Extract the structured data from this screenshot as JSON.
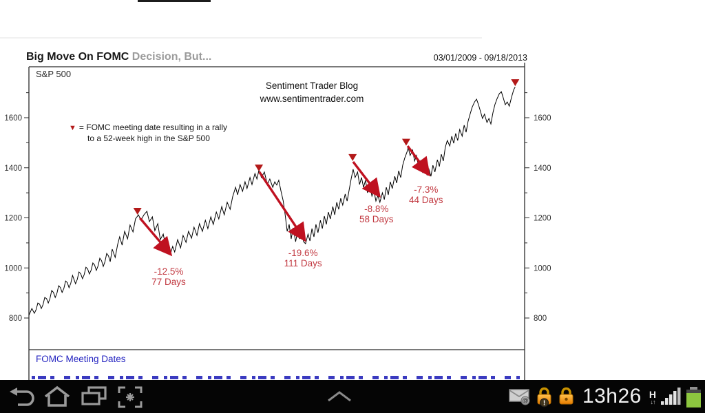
{
  "chart": {
    "title_bold": "Big Move On FOMC",
    "title_gray": " Decision, But...",
    "date_range": "03/01/2009 - 09/18/2013",
    "series_label": "S&P 500",
    "watermark_line1": "Sentiment  Trader Blog",
    "watermark_line2": "www.sentimentrader.com",
    "legend_marker": "▼",
    "legend_line1": "= FOMC  meeting date resulting in a rally",
    "legend_line2": "to a 52-week high in the S&P 500",
    "panel_label": "FOMC Meeting Dates",
    "colors": {
      "line": "#000000",
      "arrow_red": "#bf1120",
      "marker_red": "#b31919",
      "annotation_red": "#c23a42",
      "link_blue": "#2323c0",
      "axis_text": "#2d2d2d"
    }
  },
  "chart_data": {
    "type": "line",
    "title": "Big Move On FOMC Decision, But...",
    "series_name": "S&P 500",
    "x_range": [
      "03/01/2009",
      "09/18/2013"
    ],
    "ylim": [
      674,
      1803
    ],
    "yticks_major": [
      800,
      1000,
      1200,
      1400,
      1600
    ],
    "yticks_minor": [
      900,
      1100,
      1300,
      1500,
      1700
    ],
    "grid": false,
    "legend_position": "upper-left",
    "points": [
      [
        0.0,
        811
      ],
      [
        0.006,
        838
      ],
      [
        0.011,
        819
      ],
      [
        0.018,
        860
      ],
      [
        0.025,
        838
      ],
      [
        0.032,
        882
      ],
      [
        0.039,
        860
      ],
      [
        0.046,
        910
      ],
      [
        0.053,
        882
      ],
      [
        0.06,
        929
      ],
      [
        0.067,
        902
      ],
      [
        0.074,
        948
      ],
      [
        0.081,
        921
      ],
      [
        0.088,
        970
      ],
      [
        0.094,
        937
      ],
      [
        0.101,
        984
      ],
      [
        0.108,
        957
      ],
      [
        0.115,
        1003
      ],
      [
        0.122,
        976
      ],
      [
        0.129,
        1020
      ],
      [
        0.136,
        990
      ],
      [
        0.143,
        1039
      ],
      [
        0.15,
        1006
      ],
      [
        0.157,
        1058
      ],
      [
        0.164,
        1025
      ],
      [
        0.168,
        1075
      ],
      [
        0.174,
        1042
      ],
      [
        0.179,
        1094
      ],
      [
        0.183,
        1124
      ],
      [
        0.188,
        1091
      ],
      [
        0.193,
        1146
      ],
      [
        0.199,
        1116
      ],
      [
        0.204,
        1171
      ],
      [
        0.21,
        1144
      ],
      [
        0.215,
        1196
      ],
      [
        0.221,
        1212
      ],
      [
        0.226,
        1190
      ],
      [
        0.232,
        1212
      ],
      [
        0.238,
        1226
      ],
      [
        0.243,
        1185
      ],
      [
        0.249,
        1204
      ],
      [
        0.254,
        1149
      ],
      [
        0.26,
        1177
      ],
      [
        0.265,
        1113
      ],
      [
        0.271,
        1135
      ],
      [
        0.276,
        1086
      ],
      [
        0.281,
        1102
      ],
      [
        0.285,
        1053
      ],
      [
        0.29,
        1086
      ],
      [
        0.294,
        1064
      ],
      [
        0.3,
        1113
      ],
      [
        0.306,
        1080
      ],
      [
        0.311,
        1130
      ],
      [
        0.317,
        1102
      ],
      [
        0.322,
        1146
      ],
      [
        0.328,
        1119
      ],
      [
        0.333,
        1163
      ],
      [
        0.339,
        1130
      ],
      [
        0.344,
        1177
      ],
      [
        0.35,
        1146
      ],
      [
        0.356,
        1190
      ],
      [
        0.361,
        1157
      ],
      [
        0.367,
        1204
      ],
      [
        0.372,
        1174
      ],
      [
        0.378,
        1223
      ],
      [
        0.383,
        1196
      ],
      [
        0.389,
        1245
      ],
      [
        0.394,
        1212
      ],
      [
        0.4,
        1262
      ],
      [
        0.406,
        1234
      ],
      [
        0.411,
        1284
      ],
      [
        0.417,
        1322
      ],
      [
        0.421,
        1292
      ],
      [
        0.426,
        1333
      ],
      [
        0.431,
        1306
      ],
      [
        0.436,
        1344
      ],
      [
        0.44,
        1317
      ],
      [
        0.446,
        1361
      ],
      [
        0.45,
        1333
      ],
      [
        0.456,
        1377
      ],
      [
        0.46,
        1355
      ],
      [
        0.464,
        1391
      ],
      [
        0.469,
        1361
      ],
      [
        0.475,
        1383
      ],
      [
        0.481,
        1333
      ],
      [
        0.486,
        1355
      ],
      [
        0.492,
        1322
      ],
      [
        0.496,
        1344
      ],
      [
        0.5,
        1331
      ],
      [
        0.504,
        1350
      ],
      [
        0.508,
        1311
      ],
      [
        0.513,
        1267
      ],
      [
        0.517,
        1212
      ],
      [
        0.521,
        1146
      ],
      [
        0.525,
        1174
      ],
      [
        0.529,
        1116
      ],
      [
        0.533,
        1160
      ],
      [
        0.538,
        1105
      ],
      [
        0.542,
        1146
      ],
      [
        0.546,
        1116
      ],
      [
        0.55,
        1160
      ],
      [
        0.554,
        1105
      ],
      [
        0.558,
        1097
      ],
      [
        0.563,
        1135
      ],
      [
        0.567,
        1108
      ],
      [
        0.571,
        1157
      ],
      [
        0.575,
        1124
      ],
      [
        0.579,
        1174
      ],
      [
        0.583,
        1141
      ],
      [
        0.588,
        1190
      ],
      [
        0.592,
        1157
      ],
      [
        0.596,
        1207
      ],
      [
        0.6,
        1174
      ],
      [
        0.604,
        1223
      ],
      [
        0.608,
        1196
      ],
      [
        0.613,
        1245
      ],
      [
        0.617,
        1212
      ],
      [
        0.621,
        1262
      ],
      [
        0.625,
        1234
      ],
      [
        0.629,
        1278
      ],
      [
        0.633,
        1251
      ],
      [
        0.638,
        1295
      ],
      [
        0.642,
        1267
      ],
      [
        0.646,
        1311
      ],
      [
        0.65,
        1355
      ],
      [
        0.654,
        1394
      ],
      [
        0.658,
        1361
      ],
      [
        0.663,
        1383
      ],
      [
        0.667,
        1333
      ],
      [
        0.671,
        1361
      ],
      [
        0.675,
        1322
      ],
      [
        0.679,
        1350
      ],
      [
        0.683,
        1300
      ],
      [
        0.688,
        1328
      ],
      [
        0.692,
        1287
      ],
      [
        0.696,
        1309
      ],
      [
        0.7,
        1267
      ],
      [
        0.704,
        1289
      ],
      [
        0.708,
        1262
      ],
      [
        0.713,
        1300
      ],
      [
        0.717,
        1273
      ],
      [
        0.721,
        1322
      ],
      [
        0.725,
        1292
      ],
      [
        0.729,
        1344
      ],
      [
        0.733,
        1317
      ],
      [
        0.738,
        1366
      ],
      [
        0.742,
        1339
      ],
      [
        0.746,
        1388
      ],
      [
        0.75,
        1361
      ],
      [
        0.754,
        1410
      ],
      [
        0.758,
        1438
      ],
      [
        0.763,
        1465
      ],
      [
        0.765,
        1482
      ],
      [
        0.769,
        1449
      ],
      [
        0.774,
        1471
      ],
      [
        0.778,
        1427
      ],
      [
        0.782,
        1449
      ],
      [
        0.786,
        1405
      ],
      [
        0.79,
        1427
      ],
      [
        0.794,
        1383
      ],
      [
        0.799,
        1405
      ],
      [
        0.803,
        1372
      ],
      [
        0.807,
        1394
      ],
      [
        0.811,
        1366
      ],
      [
        0.815,
        1410
      ],
      [
        0.819,
        1383
      ],
      [
        0.824,
        1432
      ],
      [
        0.828,
        1405
      ],
      [
        0.832,
        1454
      ],
      [
        0.836,
        1427
      ],
      [
        0.84,
        1482
      ],
      [
        0.844,
        1509
      ],
      [
        0.849,
        1487
      ],
      [
        0.853,
        1526
      ],
      [
        0.857,
        1498
      ],
      [
        0.861,
        1537
      ],
      [
        0.865,
        1509
      ],
      [
        0.869,
        1553
      ],
      [
        0.874,
        1526
      ],
      [
        0.878,
        1570
      ],
      [
        0.882,
        1542
      ],
      [
        0.886,
        1586
      ],
      [
        0.89,
        1614
      ],
      [
        0.894,
        1641
      ],
      [
        0.899,
        1663
      ],
      [
        0.903,
        1674
      ],
      [
        0.907,
        1652
      ],
      [
        0.911,
        1625
      ],
      [
        0.915,
        1597
      ],
      [
        0.919,
        1614
      ],
      [
        0.924,
        1581
      ],
      [
        0.928,
        1597
      ],
      [
        0.932,
        1575
      ],
      [
        0.936,
        1619
      ],
      [
        0.94,
        1652
      ],
      [
        0.944,
        1674
      ],
      [
        0.949,
        1696
      ],
      [
        0.953,
        1704
      ],
      [
        0.957,
        1679
      ],
      [
        0.961,
        1652
      ],
      [
        0.965,
        1663
      ],
      [
        0.969,
        1646
      ],
      [
        0.974,
        1685
      ],
      [
        0.978,
        1712
      ],
      [
        0.981,
        1723
      ]
    ],
    "fomc_markers": [
      [
        0.219,
        1226
      ],
      [
        0.464,
        1399
      ],
      [
        0.653,
        1441
      ],
      [
        0.761,
        1502
      ],
      [
        0.981,
        1740
      ]
    ],
    "declines": [
      {
        "pct": "-12.5%",
        "days": "77 Days",
        "from": [
          0.224,
          1199
        ],
        "to": [
          0.283,
          1061
        ],
        "label": [
          0.282,
          973
        ]
      },
      {
        "pct": "-19.6%",
        "days": "111 Days",
        "from": [
          0.465,
          1383
        ],
        "to": [
          0.554,
          1119
        ],
        "label": [
          0.553,
          1047
        ]
      },
      {
        "pct": "-8.8%",
        "days": "58 Days",
        "from": [
          0.654,
          1424
        ],
        "to": [
          0.704,
          1295
        ],
        "label": [
          0.701,
          1223
        ]
      },
      {
        "pct": "-7.3%",
        "days": "44 Days",
        "from": [
          0.764,
          1487
        ],
        "to": [
          0.804,
          1380
        ],
        "label": [
          0.801,
          1300
        ]
      }
    ]
  },
  "status_bar": {
    "time": "13h26",
    "network_mode": "H",
    "network_arrows": "↓↑",
    "colors": {
      "battery_green": "#8dc63f",
      "lock_orange_top": "#ffc34d",
      "lock_orange_bottom": "#e77c00"
    }
  },
  "nav_bar": {
    "icons": [
      "back",
      "home",
      "recent-apps",
      "screen-capture",
      "chevron-up"
    ]
  }
}
